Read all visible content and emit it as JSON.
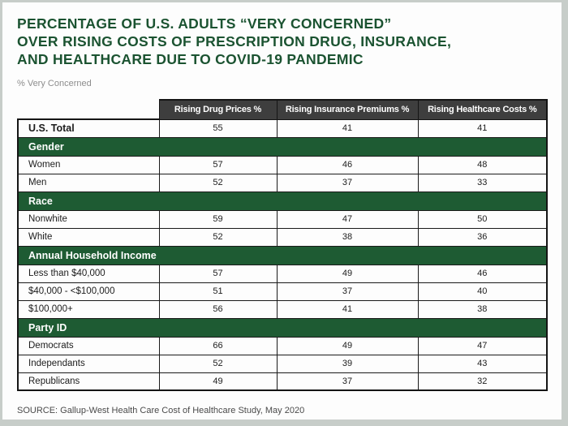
{
  "header": {
    "title_lines": [
      "PERCENTAGE OF U.S. ADULTS “VERY CONCERNED”",
      "OVER RISING COSTS OF PRESCRIPTION DRUG, INSURANCE,",
      "AND HEALTHCARE DUE TO COVID-19 PANDEMIC"
    ],
    "subtitle": "% Very Concerned"
  },
  "chart_data": {
    "type": "table",
    "title": "Percentage of U.S. adults “very concerned” over rising costs of prescription drug, insurance, and healthcare due to COVID-19 pandemic",
    "value_unit": "% Very Concerned",
    "columns": [
      "Rising Drug Prices %",
      "Rising Insurance Premiums %",
      "Rising Healthcare Costs %"
    ],
    "rows": [
      {
        "kind": "data",
        "label": "U.S. Total",
        "bold": true,
        "values": [
          55,
          41,
          41
        ]
      },
      {
        "kind": "section",
        "label": "Gender"
      },
      {
        "kind": "data",
        "label": "Women",
        "values": [
          57,
          46,
          48
        ]
      },
      {
        "kind": "data",
        "label": "Men",
        "values": [
          52,
          37,
          33
        ]
      },
      {
        "kind": "section",
        "label": "Race"
      },
      {
        "kind": "data",
        "label": "Nonwhite",
        "values": [
          59,
          47,
          50
        ]
      },
      {
        "kind": "data",
        "label": "White",
        "values": [
          52,
          38,
          36
        ]
      },
      {
        "kind": "section",
        "label": "Annual Household Income"
      },
      {
        "kind": "data",
        "label": "Less than $40,000",
        "values": [
          57,
          49,
          46
        ]
      },
      {
        "kind": "data",
        "label": "$40,000 - <$100,000",
        "values": [
          51,
          37,
          40
        ]
      },
      {
        "kind": "data",
        "label": "$100,000+",
        "values": [
          56,
          41,
          38
        ]
      },
      {
        "kind": "section",
        "label": "Party ID"
      },
      {
        "kind": "data",
        "label": "Democrats",
        "values": [
          66,
          49,
          47
        ]
      },
      {
        "kind": "data",
        "label": "Independants",
        "values": [
          52,
          39,
          43
        ]
      },
      {
        "kind": "data",
        "label": "Republicans",
        "values": [
          49,
          37,
          32
        ]
      }
    ]
  },
  "source": "SOURCE: Gallup-West Health Care Cost of Healthcare Study, May 2020",
  "colors": {
    "title_green": "#1b5331",
    "section_green": "#1e5b33",
    "header_gray": "#3e3e3e",
    "border_black": "#151515",
    "frame_gray": "#c7cdc9"
  }
}
